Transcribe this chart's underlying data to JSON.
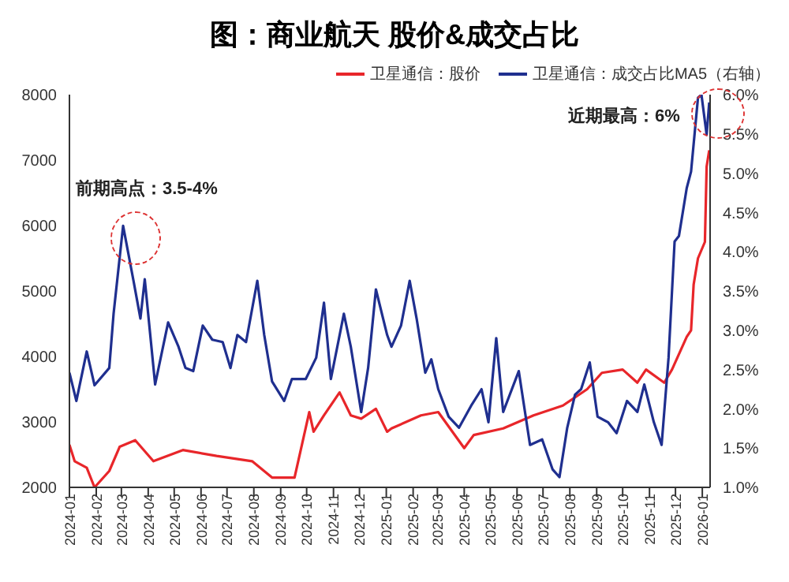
{
  "chart_data": {
    "type": "line",
    "title": "图：商业航天 股价&成交占比",
    "legend": "top",
    "grid": false,
    "xlim": [
      "2024-01-01",
      "2026-01-10"
    ],
    "xticks": [
      "2024-01",
      "2024-02",
      "2024-03",
      "2024-04",
      "2024-05",
      "2024-06",
      "2024-07",
      "2024-08",
      "2024-09",
      "2024-10",
      "2024-11",
      "2024-12",
      "2025-01",
      "2025-02",
      "2025-03",
      "2025-04",
      "2025-05",
      "2025-06",
      "2025-07",
      "2025-08",
      "2025-09",
      "2025-10",
      "2025-11",
      "2025-12",
      "2026-01"
    ],
    "ylim": [
      2000,
      8000
    ],
    "yticks": [
      2000,
      3000,
      4000,
      5000,
      6000,
      7000,
      8000
    ],
    "y2lim": [
      1.0,
      6.0
    ],
    "y2ticks": [
      {
        "value": 1.0,
        "label": "1.0%"
      },
      {
        "value": 1.5,
        "label": "1.5%"
      },
      {
        "value": 2.0,
        "label": "2.0%"
      },
      {
        "value": 2.5,
        "label": "2.5%"
      },
      {
        "value": 3.0,
        "label": "3.0%"
      },
      {
        "value": 3.5,
        "label": "3.5%"
      },
      {
        "value": 4.0,
        "label": "4.0%"
      },
      {
        "value": 4.5,
        "label": "4.5%"
      },
      {
        "value": 5.0,
        "label": "5.0%"
      },
      {
        "value": 5.5,
        "label": "5.5%"
      },
      {
        "value": 6.0,
        "label": "6.0%"
      }
    ],
    "annotations": [
      "前期高点：3.5-4%",
      "近期最高：6%"
    ],
    "series": [
      {
        "name": "卫星通信：股价",
        "color": "#e8262a",
        "x": [
          "2024-01-01",
          "2024-01-07",
          "2024-01-21",
          "2024-01-30",
          "2024-02-16",
          "2024-02-28",
          "2024-03-17",
          "2024-04-07",
          "2024-05-11",
          "2024-06-19",
          "2024-07-30",
          "2024-08-22",
          "2024-09-17",
          "2024-10-04",
          "2024-10-09",
          "2024-10-21",
          "2024-11-08",
          "2024-11-21",
          "2024-12-03",
          "2024-12-20",
          "2025-01-02",
          "2025-01-07",
          "2025-02-10",
          "2025-03-02",
          "2025-04-01",
          "2025-04-12",
          "2025-05-16",
          "2025-06-20",
          "2025-07-24",
          "2025-08-21",
          "2025-09-07",
          "2025-10-01",
          "2025-10-18",
          "2025-10-28",
          "2025-11-18",
          "2025-11-27",
          "2025-12-14",
          "2025-12-19",
          "2025-12-22",
          "2025-12-27",
          "2026-01-04",
          "2026-01-06",
          "2026-01-09"
        ],
        "values": [
          2650,
          2400,
          2300,
          2000,
          2250,
          2620,
          2720,
          2400,
          2570,
          2480,
          2400,
          2150,
          2150,
          3150,
          2850,
          3100,
          3450,
          3100,
          3050,
          3200,
          2850,
          2900,
          3100,
          3150,
          2600,
          2800,
          2900,
          3100,
          3250,
          3500,
          3750,
          3800,
          3600,
          3800,
          3600,
          3800,
          4300,
          4400,
          5100,
          5500,
          5750,
          6900,
          7150
        ]
      },
      {
        "name": "卫星通信：成交占比MA5（右轴）",
        "color": "#1f2f8f",
        "axis": "y2",
        "x": [
          "2024-01-01",
          "2024-01-09",
          "2024-01-21",
          "2024-01-30",
          "2024-02-16",
          "2024-02-21",
          "2024-03-03",
          "2024-03-15",
          "2024-03-23",
          "2024-03-28",
          "2024-04-09",
          "2024-04-24",
          "2024-05-06",
          "2024-05-14",
          "2024-05-23",
          "2024-06-03",
          "2024-06-14",
          "2024-06-26",
          "2024-07-05",
          "2024-07-13",
          "2024-07-23",
          "2024-08-05",
          "2024-08-13",
          "2024-08-22",
          "2024-09-05",
          "2024-09-14",
          "2024-09-30",
          "2024-10-12",
          "2024-10-21",
          "2024-10-29",
          "2024-11-13",
          "2024-11-21",
          "2024-12-03",
          "2024-12-11",
          "2024-12-20",
          "2025-01-02",
          "2025-01-07",
          "2025-01-18",
          "2025-01-28",
          "2025-02-05",
          "2025-02-15",
          "2025-02-22",
          "2025-03-02",
          "2025-03-14",
          "2025-03-26",
          "2025-04-09",
          "2025-04-21",
          "2025-04-29",
          "2025-05-08",
          "2025-05-16",
          "2025-06-03",
          "2025-06-16",
          "2025-06-30",
          "2025-07-12",
          "2025-07-20",
          "2025-07-29",
          "2025-08-07",
          "2025-08-14",
          "2025-08-24",
          "2025-09-02",
          "2025-09-14",
          "2025-09-24",
          "2025-10-06",
          "2025-10-18",
          "2025-10-26",
          "2025-11-06",
          "2025-11-15",
          "2025-11-23",
          "2025-11-30",
          "2025-12-05",
          "2025-12-14",
          "2025-12-19",
          "2025-12-27",
          "2025-12-31",
          "2026-01-06",
          "2026-01-09"
        ],
        "values": [
          2.46,
          2.1,
          2.73,
          2.3,
          2.52,
          3.21,
          4.33,
          3.63,
          3.15,
          3.65,
          2.31,
          3.1,
          2.79,
          2.52,
          2.48,
          3.06,
          2.88,
          2.85,
          2.52,
          2.94,
          2.85,
          3.63,
          2.94,
          2.35,
          2.1,
          2.38,
          2.38,
          2.65,
          3.35,
          2.38,
          3.21,
          2.79,
          1.96,
          2.52,
          3.52,
          2.94,
          2.79,
          3.06,
          3.63,
          3.15,
          2.46,
          2.63,
          2.25,
          1.9,
          1.76,
          2.04,
          2.25,
          1.83,
          2.9,
          1.96,
          2.48,
          1.54,
          1.61,
          1.23,
          1.13,
          1.76,
          2.18,
          2.25,
          2.59,
          1.9,
          1.83,
          1.69,
          2.1,
          1.96,
          2.31,
          1.83,
          1.54,
          2.65,
          4.13,
          4.2,
          4.81,
          5.02,
          5.96,
          6.0,
          5.49,
          5.9
        ]
      }
    ]
  }
}
